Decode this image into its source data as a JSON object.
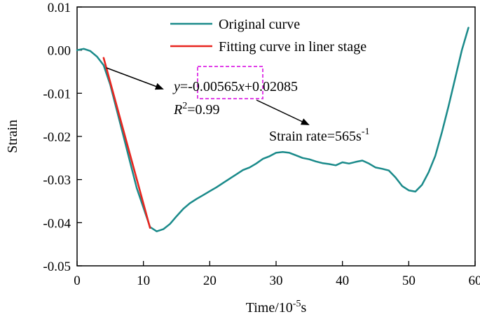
{
  "chart_data": {
    "type": "line",
    "title": "",
    "xlabel": "Time/10",
    "xlabel_sup": "-5",
    "xlabel_tail": "s",
    "ylabel": "Strain",
    "xlim": [
      0,
      60
    ],
    "ylim": [
      -0.05,
      0.01
    ],
    "xticks": [
      0,
      10,
      20,
      30,
      40,
      50,
      60
    ],
    "xtick_labels": [
      "0",
      "10",
      "20",
      "30",
      "40",
      "50",
      "60"
    ],
    "yticks": [
      0.01,
      0.0,
      -0.01,
      -0.02,
      -0.03,
      -0.04,
      -0.05
    ],
    "ytick_labels": [
      "0.01",
      "0.00",
      "-0.01",
      "-0.02",
      "-0.03",
      "-0.04",
      "-0.05"
    ],
    "grid": false,
    "legend": "top-center",
    "series": [
      {
        "name": "Original curve",
        "color": "#1a8a8a",
        "x": [
          0,
          1,
          2,
          3,
          4,
          5,
          6,
          7,
          8,
          9,
          10,
          11,
          12,
          13,
          14,
          15,
          16,
          17,
          18,
          19,
          20,
          21,
          22,
          23,
          24,
          25,
          26,
          27,
          28,
          29,
          30,
          31,
          32,
          33,
          34,
          35,
          36,
          37,
          38,
          39,
          40,
          41,
          42,
          43,
          44,
          45,
          46,
          47,
          48,
          49,
          50,
          51,
          52,
          53,
          54,
          55,
          56,
          57,
          58,
          59
        ],
        "y": [
          0.0,
          0.0003,
          -0.0002,
          -0.0015,
          -0.0035,
          -0.008,
          -0.014,
          -0.02,
          -0.026,
          -0.032,
          -0.0365,
          -0.041,
          -0.042,
          -0.0415,
          -0.0403,
          -0.0385,
          -0.0368,
          -0.0355,
          -0.0345,
          -0.0336,
          -0.0327,
          -0.0318,
          -0.0308,
          -0.0298,
          -0.0288,
          -0.0278,
          -0.0272,
          -0.0263,
          -0.0252,
          -0.0246,
          -0.0238,
          -0.0236,
          -0.0238,
          -0.0244,
          -0.025,
          -0.0253,
          -0.0258,
          -0.0262,
          -0.0264,
          -0.0267,
          -0.026,
          -0.0263,
          -0.0259,
          -0.0256,
          -0.0263,
          -0.0272,
          -0.0275,
          -0.0279,
          -0.0295,
          -0.0315,
          -0.0325,
          -0.0328,
          -0.0312,
          -0.0283,
          -0.0245,
          -0.019,
          -0.013,
          -0.0065,
          0.0,
          0.0052
        ]
      },
      {
        "name": "Fitting curve in liner stage",
        "color": "#e8251f",
        "x": [
          4,
          11
        ],
        "y": [
          -0.0018,
          -0.0412
        ]
      }
    ],
    "annotations": {
      "equation_y": "y",
      "equation_mid": "=-0.00565",
      "equation_x": "x",
      "equation_tail": "+0.02085",
      "r2_r": "R",
      "r2_sup": "2",
      "r2_tail": "=0.99",
      "rate_text": "Strain rate=565s",
      "rate_sup": "-1",
      "box_color": "#e040e8"
    }
  }
}
